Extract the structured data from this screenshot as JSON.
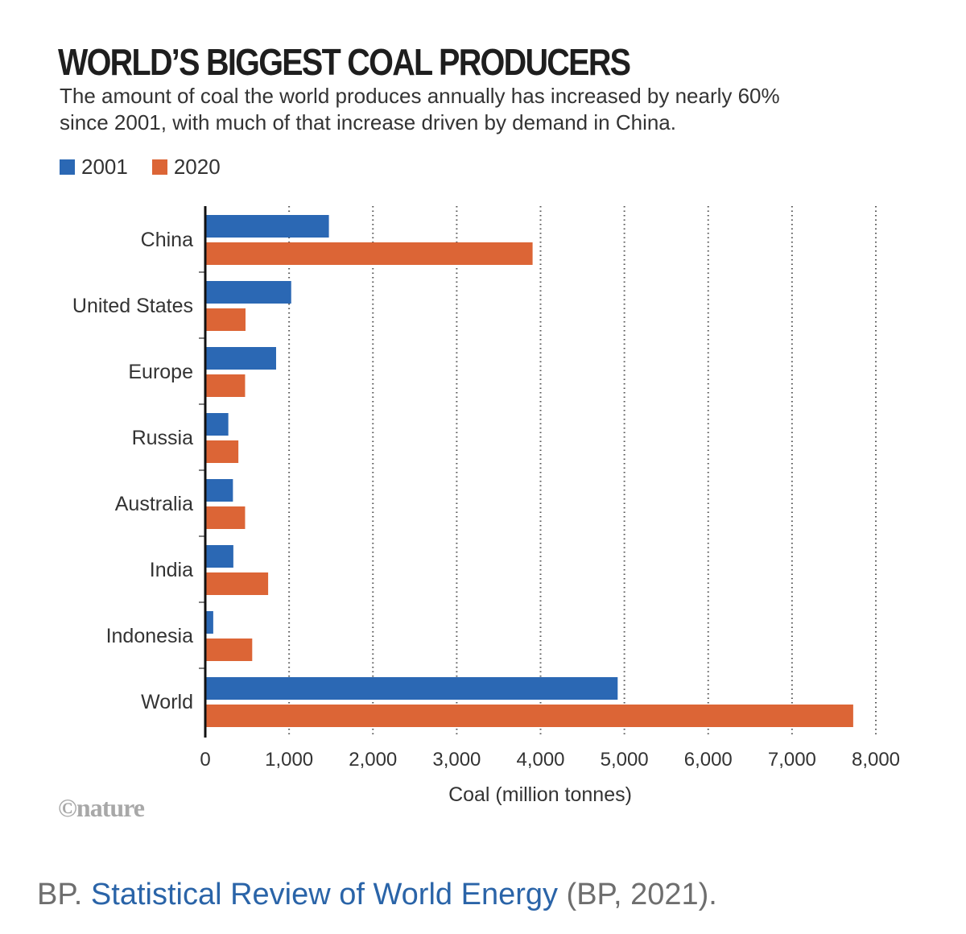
{
  "chart_data": {
    "type": "bar",
    "orientation": "horizontal",
    "title": "WORLD’S BIGGEST COAL PRODUCERS",
    "subtitle": "The amount of coal the world produces annually has increased by nearly 60% since 2001, with much of that increase driven by demand in China.",
    "categories": [
      "China",
      "United States",
      "Europe",
      "Russia",
      "Australia",
      "India",
      "Indonesia",
      "World"
    ],
    "series": [
      {
        "name": "2001",
        "color": "#2b68b4",
        "values": [
          1475,
          1025,
          845,
          275,
          330,
          335,
          95,
          4920
        ]
      },
      {
        "name": "2020",
        "color": "#dc6536",
        "values": [
          3905,
          480,
          475,
          395,
          475,
          750,
          560,
          7730
        ]
      }
    ],
    "xlabel": "Coal (million tonnes)",
    "ylabel": "",
    "xlim": [
      0,
      8000
    ],
    "x_ticks": [
      0,
      1000,
      2000,
      3000,
      4000,
      5000,
      6000,
      7000,
      8000
    ],
    "x_tick_labels": [
      "0",
      "1,000",
      "2,000",
      "3,000",
      "4,000",
      "5,000",
      "6,000",
      "7,000",
      "8,000"
    ],
    "grid": "vertical dotted",
    "legend_position": "top-left"
  },
  "credit": "©nature",
  "source": {
    "prefix": "BP. ",
    "link_text": "Statistical Review of World Energy",
    "suffix": " (BP, 2021)."
  }
}
